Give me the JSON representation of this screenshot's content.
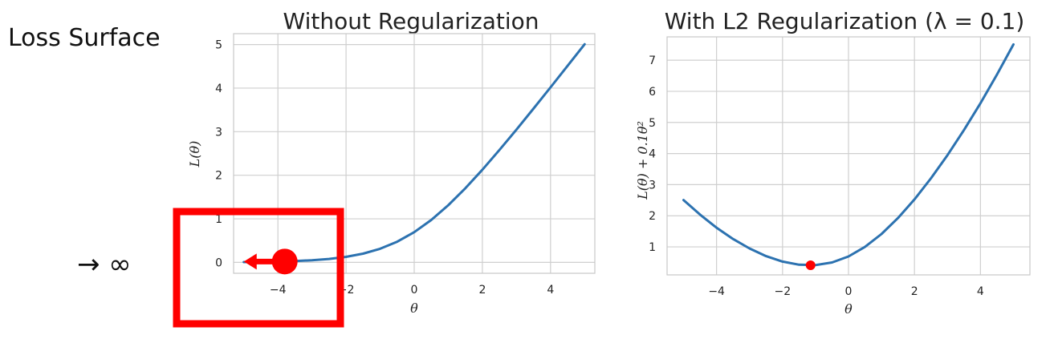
{
  "slide": {
    "title": "Loss Surface",
    "arrow_label": "→ ∞"
  },
  "colors": {
    "series": "#2c72b0",
    "highlight": "#ff0000",
    "grid": "#cfcfcf"
  },
  "chart_data": [
    {
      "type": "line",
      "title": "Without Regularization",
      "xlabel": "θ",
      "ylabel": "L(θ)",
      "xlim": [
        -5.3,
        5.3
      ],
      "ylim": [
        -0.25,
        5.25
      ],
      "xticks": [
        -4,
        -2,
        0,
        2,
        4
      ],
      "xtick_labels": [
        "−4",
        "−2",
        "0",
        "2",
        "4"
      ],
      "yticks": [
        0,
        1,
        2,
        3,
        4,
        5
      ],
      "ytick_labels": [
        "0",
        "1",
        "2",
        "3",
        "4",
        "5"
      ],
      "grid": true,
      "series": [
        {
          "x": [
            -5,
            -4.5,
            -4,
            -3.5,
            -3,
            -2.5,
            -2,
            -1.5,
            -1,
            -0.5,
            0,
            0.5,
            1,
            1.5,
            2,
            2.5,
            3,
            3.5,
            4,
            4.5,
            5
          ],
          "y": [
            0.007,
            0.011,
            0.018,
            0.03,
            0.049,
            0.079,
            0.127,
            0.201,
            0.313,
            0.474,
            0.693,
            0.974,
            1.313,
            1.701,
            2.127,
            2.579,
            3.049,
            3.53,
            4.018,
            4.511,
            5.007
          ]
        }
      ],
      "annotations": [
        {
          "kind": "point",
          "x": -3.8,
          "y": 0.02
        },
        {
          "kind": "arrow",
          "from_x": -3.8,
          "to_x": -5.0,
          "y": 0.02
        },
        {
          "kind": "highlight-box"
        }
      ]
    },
    {
      "type": "line",
      "title": "With L2 Regularization (λ = 0.1)",
      "xlabel": "θ",
      "ylabel": "L(θ) + 0.1θ²",
      "xlim": [
        -5.5,
        5.5
      ],
      "ylim": [
        0.1,
        7.75
      ],
      "xticks": [
        -4,
        -2,
        0,
        2,
        4
      ],
      "xtick_labels": [
        "−4",
        "−2",
        "0",
        "2",
        "4"
      ],
      "yticks": [
        1,
        2,
        3,
        4,
        5,
        6,
        7
      ],
      "ytick_labels": [
        "1",
        "2",
        "3",
        "4",
        "5",
        "6",
        "7"
      ],
      "grid": true,
      "series": [
        {
          "x": [
            -5,
            -4.5,
            -4,
            -3.5,
            -3,
            -2.5,
            -2,
            -1.5,
            -1,
            -0.5,
            0,
            0.5,
            1,
            1.5,
            2,
            2.5,
            3,
            3.5,
            4,
            4.5,
            5
          ],
          "y": [
            2.507,
            2.036,
            1.618,
            1.255,
            0.949,
            0.704,
            0.527,
            0.426,
            0.413,
            0.499,
            0.693,
            0.999,
            1.413,
            1.926,
            2.527,
            3.204,
            3.949,
            4.755,
            5.618,
            6.536,
            7.507
          ]
        }
      ],
      "annotations": [
        {
          "kind": "point",
          "x": -1.15,
          "y": 0.41
        }
      ]
    }
  ]
}
